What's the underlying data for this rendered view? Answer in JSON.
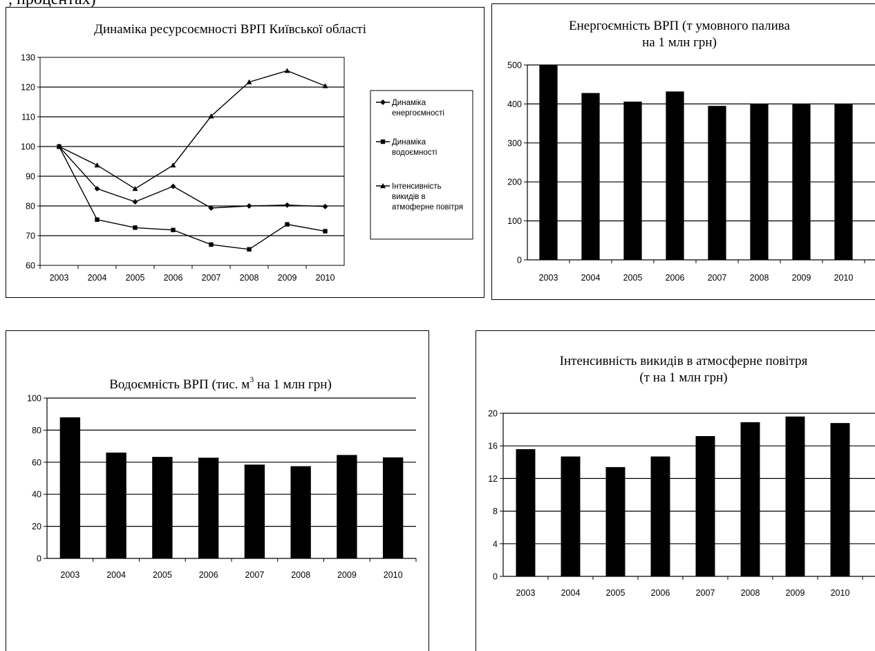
{
  "page_header_fragment": ", процентах)",
  "chart_data": [
    {
      "id": "c1",
      "type": "line",
      "title": "Динаміка ресурсоємності ВРП Київської області",
      "xlabel": "",
      "ylabel": "",
      "categories": [
        "2003",
        "2004",
        "2005",
        "2006",
        "2007",
        "2008",
        "2009",
        "2010"
      ],
      "ylim": [
        60,
        130
      ],
      "yticks": [
        "60",
        "70",
        "80",
        "90",
        "100",
        "110",
        "120",
        "130"
      ],
      "grid": true,
      "legend_position": "right",
      "series": [
        {
          "name_lines": [
            "Динаміка",
            "енергоємності"
          ],
          "marker": "diamond",
          "values": [
            100,
            85.8,
            81.4,
            86.6,
            79.3,
            80.0,
            80.3,
            79.8
          ]
        },
        {
          "name_lines": [
            "Динаміка",
            "водоємності"
          ],
          "marker": "square",
          "values": [
            100,
            75.4,
            72.7,
            71.9,
            67.0,
            65.4,
            73.8,
            71.5
          ]
        },
        {
          "name_lines": [
            "Інтенсивність",
            "викидів в",
            "атмоферне повітря"
          ],
          "marker": "triangle",
          "values": [
            100,
            93.7,
            85.8,
            93.7,
            110.2,
            121.7,
            125.5,
            120.4
          ]
        }
      ]
    },
    {
      "id": "c2",
      "type": "bar",
      "title_lines": [
        "Енергоємність ВРП (т умовного палива",
        "на 1 млн грн)"
      ],
      "xlabel": "",
      "ylabel": "",
      "categories": [
        "2003",
        "2004",
        "2005",
        "2006",
        "2007",
        "2008",
        "2009",
        "2010"
      ],
      "values": [
        500,
        428,
        406,
        432,
        395,
        400,
        400,
        400
      ],
      "ylim": [
        0,
        500
      ],
      "yticks": [
        "0",
        "100",
        "200",
        "300",
        "400",
        "500"
      ],
      "grid": true
    },
    {
      "id": "c3",
      "type": "bar",
      "title_parts": {
        "before": "Водоємність ВРП (тис. м",
        "sup": "3",
        "after": " на 1 млн грн)"
      },
      "xlabel": "",
      "ylabel": "",
      "categories": [
        "2003",
        "2004",
        "2005",
        "2006",
        "2007",
        "2008",
        "2009",
        "2010"
      ],
      "values": [
        88,
        66,
        63.3,
        62.8,
        58.5,
        57.5,
        64.5,
        63
      ],
      "ylim": [
        0,
        100
      ],
      "yticks": [
        "0",
        "20",
        "40",
        "60",
        "80",
        "100"
      ],
      "grid": true
    },
    {
      "id": "c4",
      "type": "bar",
      "title_lines": [
        "Інтенсивність викидів в атмосферне повітря",
        "(т на 1 млн грн)"
      ],
      "xlabel": "",
      "ylabel": "",
      "categories": [
        "2003",
        "2004",
        "2005",
        "2006",
        "2007",
        "2008",
        "2009",
        "2010"
      ],
      "values": [
        15.6,
        14.7,
        13.4,
        14.7,
        17.2,
        18.9,
        19.6,
        18.8
      ],
      "ylim": [
        0,
        20
      ],
      "yticks": [
        "0",
        "4",
        "8",
        "12",
        "16",
        "20"
      ],
      "grid": true
    }
  ]
}
